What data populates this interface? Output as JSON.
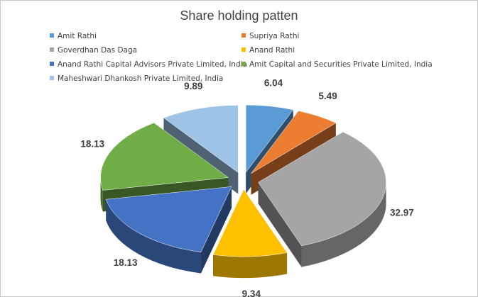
{
  "chart_data": {
    "type": "pie",
    "title": "Share holding patten",
    "legend_position": "top",
    "categories": [
      "Amit Rathi",
      "Supriya Rathi",
      "Goverdhan Das Daga",
      "Anand Rathi",
      "Anand Rathi Capital Advisors Private Limited, India",
      "Amit Capital and Securities Private Limited, India",
      "Maheshwari Dhankosh Private Limited, India"
    ],
    "values": [
      6.04,
      5.49,
      32.97,
      9.34,
      18.13,
      18.13,
      9.89
    ],
    "data_labels": [
      "6.04",
      "5.49",
      "32.97",
      "9.34",
      "18.13",
      "18.13",
      "9.89"
    ],
    "colors": [
      "#5b9bd5",
      "#ed7d31",
      "#a5a5a5",
      "#ffc000",
      "#4472c4",
      "#70ad47",
      "#9dc3e6"
    ],
    "exploded": true,
    "three_d": true
  }
}
